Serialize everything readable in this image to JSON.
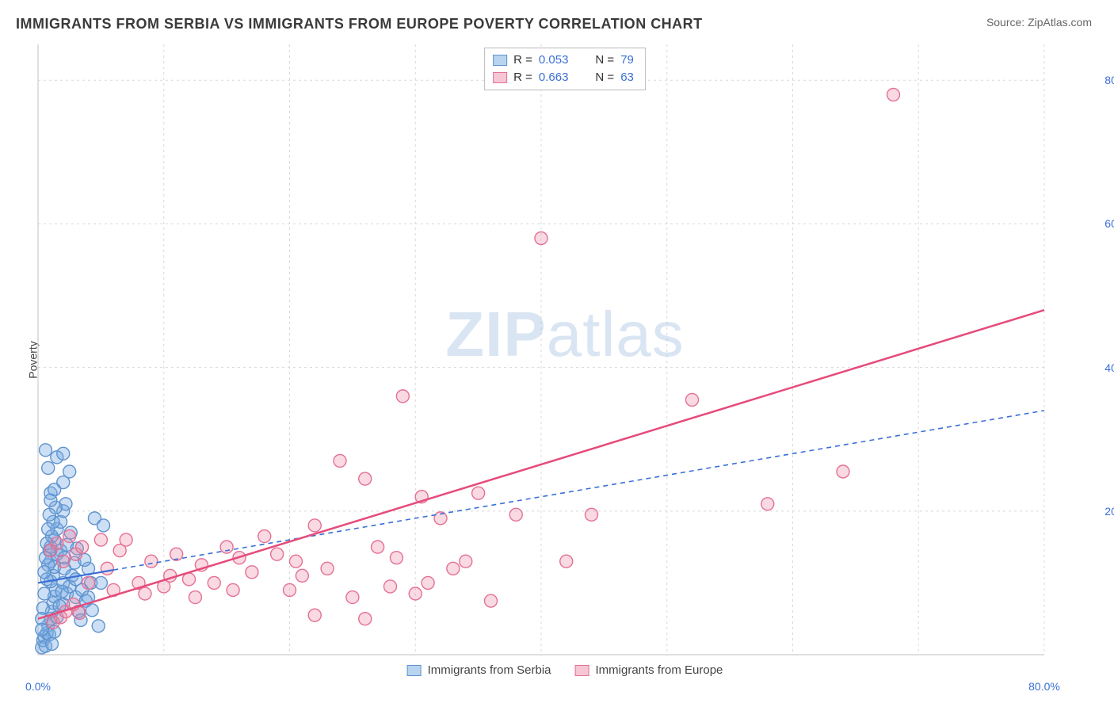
{
  "title": "IMMIGRANTS FROM SERBIA VS IMMIGRANTS FROM EUROPE POVERTY CORRELATION CHART",
  "source": "Source: ZipAtlas.com",
  "ylabel": "Poverty",
  "watermark": {
    "bold": "ZIP",
    "rest": "atlas"
  },
  "chart": {
    "type": "scatter",
    "xlim": [
      0,
      80
    ],
    "ylim": [
      0,
      85
    ],
    "xtick_labels": [
      "0.0%",
      "80.0%"
    ],
    "xtick_positions": [
      0,
      80
    ],
    "ytick_labels": [
      "20.0%",
      "40.0%",
      "60.0%",
      "80.0%"
    ],
    "ytick_positions": [
      20,
      40,
      60,
      80
    ],
    "grid_color": "#d8d8d8",
    "grid_dash": "3,4",
    "axis_color": "#cccccc",
    "vgrid_positions": [
      0,
      10,
      20,
      30,
      40,
      50,
      60,
      70,
      80
    ],
    "background_color": "#ffffff",
    "marker_radius": 8,
    "marker_stroke_width": 1.4,
    "series": [
      {
        "name": "Immigrants from Serbia",
        "label": "Immigrants from Serbia",
        "fill": "rgba(120,170,225,0.38)",
        "stroke": "#5f93cf",
        "swatch_fill": "#b9d4ef",
        "swatch_stroke": "#5f93cf",
        "R": "0.053",
        "N": "79",
        "trend": {
          "x1": 0,
          "y1": 10.0,
          "x2": 80,
          "y2": 34.0,
          "solid_until_x": 6,
          "color": "#3b6fd6",
          "width": 2.2,
          "dash": "6,5"
        },
        "points": [
          [
            0.3,
            1.0
          ],
          [
            0.4,
            2.0
          ],
          [
            0.5,
            2.5
          ],
          [
            0.6,
            1.2
          ],
          [
            0.7,
            3.0
          ],
          [
            0.8,
            4.1
          ],
          [
            0.9,
            2.8
          ],
          [
            1.0,
            5.0
          ],
          [
            1.1,
            6.0
          ],
          [
            1.2,
            7.2
          ],
          [
            1.3,
            8.1
          ],
          [
            1.4,
            9.0
          ],
          [
            1.0,
            10.2
          ],
          [
            1.2,
            11.0
          ],
          [
            1.3,
            12.2
          ],
          [
            1.0,
            13.0
          ],
          [
            1.5,
            14.0
          ],
          [
            1.0,
            15.0
          ],
          [
            1.3,
            16.0
          ],
          [
            1.8,
            14.5
          ],
          [
            2.0,
            10.0
          ],
          [
            2.1,
            12.0
          ],
          [
            2.3,
            8.5
          ],
          [
            2.0,
            7.0
          ],
          [
            2.5,
            9.5
          ],
          [
            2.7,
            11.0
          ],
          [
            3.0,
            10.5
          ],
          [
            3.0,
            8.0
          ],
          [
            3.2,
            6.0
          ],
          [
            3.5,
            9.0
          ],
          [
            3.8,
            7.5
          ],
          [
            4.0,
            12.0
          ],
          [
            4.0,
            8.0
          ],
          [
            4.2,
            10.0
          ],
          [
            4.5,
            19.0
          ],
          [
            4.8,
            4.0
          ],
          [
            5.0,
            10.0
          ],
          [
            5.2,
            18.0
          ],
          [
            1.5,
            17.5
          ],
          [
            1.8,
            18.5
          ],
          [
            2.0,
            20.0
          ],
          [
            2.2,
            21.0
          ],
          [
            1.0,
            22.5
          ],
          [
            1.3,
            23.0
          ],
          [
            2.0,
            24.0
          ],
          [
            2.5,
            25.5
          ],
          [
            0.8,
            26.0
          ],
          [
            1.5,
            27.5
          ],
          [
            2.0,
            28.0
          ],
          [
            0.6,
            28.5
          ],
          [
            0.4,
            6.5
          ],
          [
            0.5,
            8.5
          ],
          [
            0.7,
            10.5
          ],
          [
            0.8,
            12.5
          ],
          [
            0.9,
            14.5
          ],
          [
            1.1,
            16.5
          ],
          [
            1.2,
            18.5
          ],
          [
            1.4,
            20.5
          ],
          [
            0.3,
            5.0
          ],
          [
            0.3,
            3.5
          ],
          [
            0.5,
            11.5
          ],
          [
            0.6,
            13.5
          ],
          [
            0.7,
            15.5
          ],
          [
            0.8,
            17.5
          ],
          [
            0.9,
            19.5
          ],
          [
            1.0,
            21.5
          ],
          [
            1.1,
            1.5
          ],
          [
            1.3,
            3.2
          ],
          [
            1.5,
            5.2
          ],
          [
            1.7,
            6.8
          ],
          [
            1.9,
            8.8
          ],
          [
            2.1,
            13.5
          ],
          [
            2.3,
            15.3
          ],
          [
            2.6,
            17.0
          ],
          [
            2.9,
            12.8
          ],
          [
            3.1,
            14.8
          ],
          [
            3.4,
            4.8
          ],
          [
            3.7,
            13.2
          ],
          [
            4.3,
            6.2
          ]
        ]
      },
      {
        "name": "Immigrants from Europe",
        "label": "Immigrants from Europe",
        "fill": "rgba(235,130,160,0.30)",
        "stroke": "#e47095",
        "swatch_fill": "#f6c6d4",
        "swatch_stroke": "#e47095",
        "R": "0.663",
        "N": "63",
        "trend": {
          "x1": 0,
          "y1": 5.0,
          "x2": 80,
          "y2": 48.0,
          "solid_until_x": 80,
          "color": "#e64b7a",
          "width": 2.5,
          "dash": null
        },
        "points": [
          [
            1.0,
            14.5
          ],
          [
            1.5,
            15.5
          ],
          [
            2.0,
            13.0
          ],
          [
            2.5,
            16.5
          ],
          [
            3.0,
            14.0
          ],
          [
            3.5,
            15.0
          ],
          [
            4.0,
            10.0
          ],
          [
            5.0,
            16.0
          ],
          [
            5.5,
            12.0
          ],
          [
            6.0,
            9.0
          ],
          [
            6.5,
            14.5
          ],
          [
            7.0,
            16.0
          ],
          [
            8.0,
            10.0
          ],
          [
            8.5,
            8.5
          ],
          [
            9.0,
            13.0
          ],
          [
            10.0,
            9.5
          ],
          [
            10.5,
            11.0
          ],
          [
            11.0,
            14.0
          ],
          [
            12.0,
            10.5
          ],
          [
            12.5,
            8.0
          ],
          [
            13.0,
            12.5
          ],
          [
            14.0,
            10.0
          ],
          [
            15.0,
            15.0
          ],
          [
            15.5,
            9.0
          ],
          [
            16.0,
            13.5
          ],
          [
            17.0,
            11.5
          ],
          [
            18.0,
            16.5
          ],
          [
            19.0,
            14.0
          ],
          [
            20.0,
            9.0
          ],
          [
            20.5,
            13.0
          ],
          [
            21.0,
            11.0
          ],
          [
            22.0,
            18.0
          ],
          [
            23.0,
            12.0
          ],
          [
            24.0,
            27.0
          ],
          [
            25.0,
            8.0
          ],
          [
            26.0,
            24.5
          ],
          [
            27.0,
            15.0
          ],
          [
            28.0,
            9.5
          ],
          [
            28.5,
            13.5
          ],
          [
            29.0,
            36.0
          ],
          [
            30.0,
            8.5
          ],
          [
            30.5,
            22.0
          ],
          [
            31.0,
            10.0
          ],
          [
            32.0,
            19.0
          ],
          [
            33.0,
            12.0
          ],
          [
            34.0,
            13.0
          ],
          [
            35.0,
            22.5
          ],
          [
            36.0,
            7.5
          ],
          [
            38.0,
            19.5
          ],
          [
            40.0,
            58.0
          ],
          [
            42.0,
            13.0
          ],
          [
            44.0,
            19.5
          ],
          [
            52.0,
            35.5
          ],
          [
            58.0,
            21.0
          ],
          [
            64.0,
            25.5
          ],
          [
            68.0,
            78.0
          ],
          [
            1.2,
            4.5
          ],
          [
            1.8,
            5.2
          ],
          [
            2.2,
            6.0
          ],
          [
            2.8,
            7.0
          ],
          [
            3.3,
            5.8
          ],
          [
            22.0,
            5.5
          ],
          [
            26.0,
            5.0
          ]
        ]
      }
    ]
  },
  "legend_top": {
    "R_label": "R =",
    "N_label": "N ="
  },
  "legend_bottom_labels": [
    "Immigrants from Serbia",
    "Immigrants from Europe"
  ]
}
